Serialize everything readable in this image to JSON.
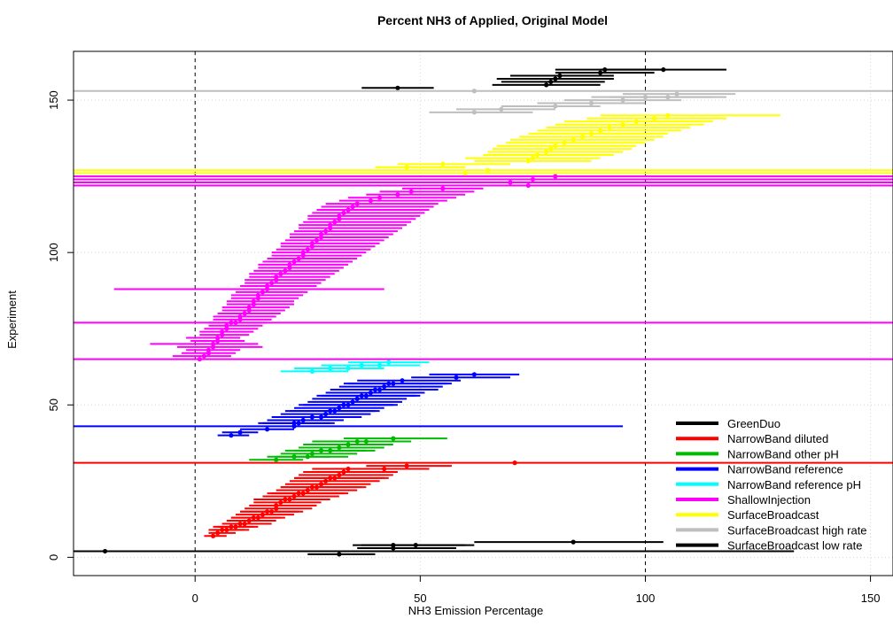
{
  "chart_data": {
    "type": "errorbar-scatter",
    "title": "Percent NH3 of Applied, Original Model",
    "xlabel": "NH3 Emission Percentage",
    "ylabel": "Experiment",
    "xlim": [
      -27,
      155
    ],
    "ylim": [
      -6,
      166
    ],
    "x_ticks": [
      0,
      50,
      100,
      150
    ],
    "y_ticks": [
      0,
      50,
      100,
      150
    ],
    "reference_lines_x": [
      0,
      100
    ],
    "grid": true,
    "legend_position": "bottom-right",
    "series": [
      {
        "name": "GreenDuo",
        "color": "#000000",
        "points": [
          [
            45,
            154,
            37,
            53
          ],
          [
            78,
            155,
            66,
            90
          ],
          [
            79,
            156,
            68,
            91
          ],
          [
            80,
            157,
            67,
            93
          ],
          [
            81,
            158,
            70,
            93
          ],
          [
            90,
            159,
            80,
            102
          ],
          [
            91,
            160,
            80,
            104
          ],
          [
            104,
            160,
            90,
            118
          ]
        ]
      },
      {
        "name": "NarrowBand diluted",
        "color": "#ff0000",
        "points": [
          [
            4,
            7,
            2,
            7
          ],
          [
            5,
            8,
            3,
            9
          ],
          [
            6,
            9,
            3,
            11
          ],
          [
            7,
            9,
            4,
            12
          ],
          [
            8,
            10,
            4,
            13
          ],
          [
            9,
            10,
            5,
            14
          ],
          [
            10,
            11,
            6,
            15
          ],
          [
            11,
            11,
            6,
            17
          ],
          [
            12,
            12,
            7,
            18
          ],
          [
            13,
            13,
            8,
            19
          ],
          [
            14,
            13,
            8,
            20
          ],
          [
            15,
            14,
            9,
            22
          ],
          [
            16,
            15,
            10,
            23
          ],
          [
            17,
            15,
            10,
            24
          ],
          [
            18,
            16,
            11,
            26
          ],
          [
            18,
            17,
            12,
            27
          ],
          [
            19,
            18,
            13,
            28
          ],
          [
            20,
            19,
            13,
            29
          ],
          [
            21,
            19,
            14,
            30
          ],
          [
            22,
            20,
            15,
            32
          ],
          [
            23,
            21,
            16,
            33
          ],
          [
            24,
            21,
            17,
            34
          ],
          [
            25,
            22,
            18,
            36
          ],
          [
            26,
            23,
            19,
            37
          ],
          [
            27,
            23,
            19,
            38
          ],
          [
            28,
            24,
            20,
            39
          ],
          [
            29,
            25,
            21,
            41
          ],
          [
            30,
            26,
            22,
            42
          ],
          [
            31,
            26,
            22,
            43
          ],
          [
            32,
            27,
            23,
            44
          ],
          [
            33,
            28,
            24,
            45
          ],
          [
            34,
            29,
            26,
            46
          ],
          [
            42,
            29,
            32,
            52
          ],
          [
            47,
            30,
            38,
            57
          ],
          [
            71,
            31,
            -30,
            170
          ]
        ]
      },
      {
        "name": "NarrowBand other pH",
        "color": "#00bb00",
        "points": [
          [
            18,
            32,
            12,
            24
          ],
          [
            22,
            33,
            16,
            30
          ],
          [
            25,
            33,
            18,
            34
          ],
          [
            26,
            34,
            19,
            36
          ],
          [
            28,
            35,
            20,
            38
          ],
          [
            30,
            35,
            22,
            40
          ],
          [
            32,
            36,
            23,
            42
          ],
          [
            34,
            37,
            24,
            44
          ],
          [
            36,
            38,
            26,
            46
          ],
          [
            38,
            38,
            28,
            48
          ],
          [
            44,
            39,
            33,
            56
          ]
        ]
      },
      {
        "name": "NarrowBand reference",
        "color": "#0000ff",
        "points": [
          [
            8,
            40,
            5,
            12
          ],
          [
            10,
            41,
            6,
            14
          ],
          [
            16,
            42,
            10,
            22
          ],
          [
            22,
            43,
            -30,
            95
          ],
          [
            22,
            44,
            14,
            30
          ],
          [
            23,
            44,
            15,
            31
          ],
          [
            24,
            45,
            16,
            33
          ],
          [
            26,
            46,
            17,
            35
          ],
          [
            28,
            46,
            18,
            37
          ],
          [
            29,
            47,
            19,
            39
          ],
          [
            30,
            48,
            20,
            40
          ],
          [
            31,
            48,
            21,
            41
          ],
          [
            32,
            49,
            22,
            42
          ],
          [
            33,
            50,
            23,
            44
          ],
          [
            34,
            50,
            24,
            45
          ],
          [
            35,
            51,
            25,
            46
          ],
          [
            36,
            52,
            26,
            47
          ],
          [
            37,
            53,
            27,
            49
          ],
          [
            38,
            53,
            28,
            50
          ],
          [
            39,
            54,
            29,
            51
          ],
          [
            40,
            55,
            30,
            53
          ],
          [
            41,
            55,
            31,
            54
          ],
          [
            42,
            56,
            32,
            55
          ],
          [
            43,
            57,
            33,
            56
          ],
          [
            44,
            57,
            34,
            57
          ],
          [
            46,
            58,
            36,
            59
          ],
          [
            58,
            59,
            48,
            70
          ],
          [
            62,
            60,
            52,
            72
          ]
        ]
      },
      {
        "name": "NarrowBand reference pH",
        "color": "#00ffff",
        "points": [
          [
            26,
            61,
            19,
            34
          ],
          [
            30,
            62,
            22,
            38
          ],
          [
            34,
            62,
            25,
            42
          ],
          [
            37,
            63,
            28,
            46
          ],
          [
            41,
            63,
            32,
            50
          ],
          [
            43,
            64,
            34,
            52
          ]
        ]
      },
      {
        "name": "ShallowInjection",
        "color": "#ff00ff",
        "points": [
          [
            1,
            65,
            -30,
            170
          ],
          [
            2,
            66,
            -5,
            8
          ],
          [
            3,
            67,
            -3,
            9
          ],
          [
            3,
            68,
            -2,
            10
          ],
          [
            4,
            69,
            -4,
            15
          ],
          [
            4,
            70,
            -10,
            14
          ],
          [
            5,
            71,
            -1,
            11
          ],
          [
            5,
            72,
            -2,
            10
          ],
          [
            6,
            73,
            1,
            12
          ],
          [
            6,
            74,
            1,
            13
          ],
          [
            7,
            75,
            2,
            14
          ],
          [
            7,
            76,
            3,
            15
          ],
          [
            8,
            77,
            -30,
            170
          ],
          [
            9,
            77,
            3,
            16
          ],
          [
            10,
            78,
            4,
            17
          ],
          [
            10,
            79,
            4,
            18
          ],
          [
            11,
            80,
            5,
            19
          ],
          [
            12,
            81,
            6,
            20
          ],
          [
            12,
            82,
            6,
            21
          ],
          [
            13,
            83,
            7,
            22
          ],
          [
            13,
            84,
            7,
            22
          ],
          [
            14,
            85,
            8,
            23
          ],
          [
            14,
            86,
            8,
            24
          ],
          [
            15,
            87,
            9,
            25
          ],
          [
            16,
            88,
            -18,
            42
          ],
          [
            16,
            89,
            10,
            27
          ],
          [
            17,
            90,
            11,
            28
          ],
          [
            18,
            91,
            11,
            29
          ],
          [
            18,
            92,
            12,
            30
          ],
          [
            19,
            93,
            12,
            31
          ],
          [
            20,
            94,
            13,
            32
          ],
          [
            21,
            95,
            14,
            33
          ],
          [
            21,
            96,
            14,
            34
          ],
          [
            22,
            97,
            15,
            35
          ],
          [
            23,
            98,
            16,
            36
          ],
          [
            24,
            99,
            17,
            37
          ],
          [
            24,
            100,
            17,
            38
          ],
          [
            25,
            101,
            18,
            39
          ],
          [
            26,
            102,
            19,
            40
          ],
          [
            26,
            103,
            19,
            41
          ],
          [
            27,
            104,
            20,
            42
          ],
          [
            28,
            105,
            21,
            43
          ],
          [
            28,
            106,
            21,
            44
          ],
          [
            29,
            107,
            22,
            45
          ],
          [
            30,
            108,
            23,
            46
          ],
          [
            30,
            109,
            23,
            47
          ],
          [
            31,
            110,
            24,
            48
          ],
          [
            32,
            111,
            25,
            49
          ],
          [
            32,
            112,
            25,
            50
          ],
          [
            33,
            113,
            26,
            51
          ],
          [
            34,
            114,
            27,
            52
          ],
          [
            35,
            115,
            28,
            53
          ],
          [
            36,
            116,
            29,
            54
          ],
          [
            39,
            117,
            32,
            56
          ],
          [
            41,
            118,
            34,
            58
          ],
          [
            45,
            119,
            38,
            60
          ],
          [
            48,
            120,
            41,
            62
          ],
          [
            55,
            121,
            46,
            64
          ],
          [
            74,
            122,
            -30,
            170
          ],
          [
            70,
            123,
            -30,
            170
          ],
          [
            75,
            124,
            -30,
            170
          ],
          [
            80,
            125,
            -30,
            170
          ]
        ]
      },
      {
        "name": "SurfaceBroadcast",
        "color": "#ffff00",
        "points": [
          [
            60,
            126,
            -30,
            170
          ],
          [
            65,
            127,
            -30,
            170
          ],
          [
            47,
            128,
            40,
            60
          ],
          [
            55,
            129,
            45,
            70
          ],
          [
            74,
            130,
            62,
            88
          ],
          [
            75,
            131,
            60,
            90
          ],
          [
            76,
            132,
            64,
            93
          ],
          [
            78,
            133,
            65,
            95
          ],
          [
            79,
            134,
            66,
            97
          ],
          [
            80,
            135,
            67,
            98
          ],
          [
            82,
            136,
            69,
            100
          ],
          [
            84,
            137,
            70,
            102
          ],
          [
            86,
            138,
            72,
            104
          ],
          [
            88,
            139,
            74,
            105
          ],
          [
            90,
            140,
            76,
            108
          ],
          [
            92,
            141,
            78,
            110
          ],
          [
            95,
            142,
            80,
            113
          ],
          [
            98,
            143,
            82,
            115
          ],
          [
            102,
            144,
            87,
            118
          ],
          [
            105,
            145,
            90,
            130
          ]
        ]
      },
      {
        "name": "SurfaceBroadcast high rate",
        "color": "#bebebe",
        "points": [
          [
            62,
            153,
            -30,
            170
          ],
          [
            62,
            146,
            52,
            75
          ],
          [
            68,
            147,
            58,
            80
          ],
          [
            80,
            148,
            68,
            90
          ],
          [
            88,
            149,
            76,
            100
          ],
          [
            95,
            150,
            82,
            108
          ],
          [
            100,
            151,
            88,
            115
          ],
          [
            105,
            151,
            92,
            118
          ],
          [
            107,
            152,
            95,
            120
          ]
        ]
      },
      {
        "name": "SurfaceBroadcast low rate",
        "color": "#000000",
        "points": [
          [
            -20,
            2,
            -30,
            133
          ],
          [
            32,
            1,
            25,
            40
          ],
          [
            44,
            3,
            36,
            58
          ],
          [
            44,
            4,
            35,
            60
          ],
          [
            49,
            4,
            37,
            62
          ],
          [
            84,
            5,
            62,
            104
          ]
        ]
      }
    ],
    "legend": [
      {
        "name": "GreenDuo",
        "color": "#000000"
      },
      {
        "name": "NarrowBand diluted",
        "color": "#ff0000"
      },
      {
        "name": "NarrowBand other pH",
        "color": "#00bb00"
      },
      {
        "name": "NarrowBand reference",
        "color": "#0000ff"
      },
      {
        "name": "NarrowBand reference pH",
        "color": "#00ffff"
      },
      {
        "name": "ShallowInjection",
        "color": "#ff00ff"
      },
      {
        "name": "SurfaceBroadcast",
        "color": "#ffff00"
      },
      {
        "name": "SurfaceBroadcast high rate",
        "color": "#bebebe"
      },
      {
        "name": "SurfaceBroadcast low rate",
        "color": "#000000"
      }
    ]
  }
}
